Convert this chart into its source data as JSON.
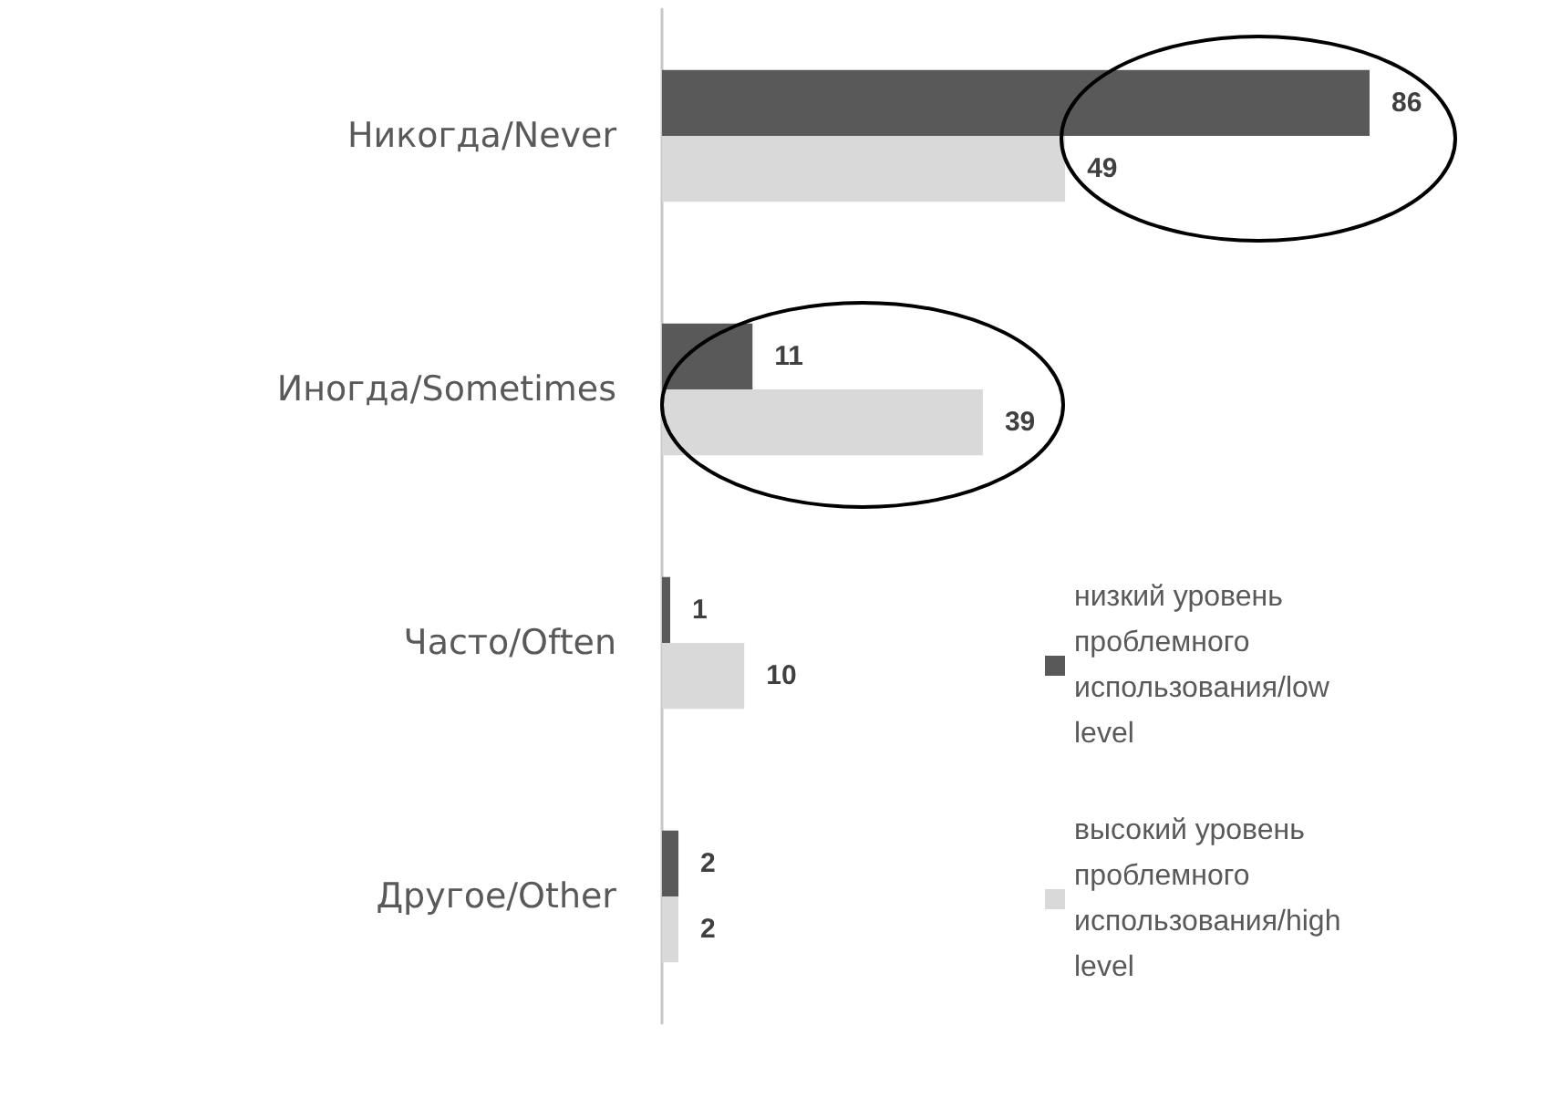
{
  "chart_data": {
    "type": "bar",
    "orientation": "horizontal",
    "categories": [
      "Никогда/Never",
      "Иногда/Sometimes",
      "Часто/Often",
      "Другое/Other"
    ],
    "series": [
      {
        "name": "низкий уровень проблемного использования/low level",
        "color": "#595959",
        "values": [
          86,
          11,
          1,
          2
        ]
      },
      {
        "name": "высокий уровень проблемного использования/high level",
        "color": "#d9d9d9",
        "values": [
          49,
          39,
          10,
          2
        ]
      }
    ],
    "data_labels": true,
    "legend": "right",
    "grid": false
  }
}
